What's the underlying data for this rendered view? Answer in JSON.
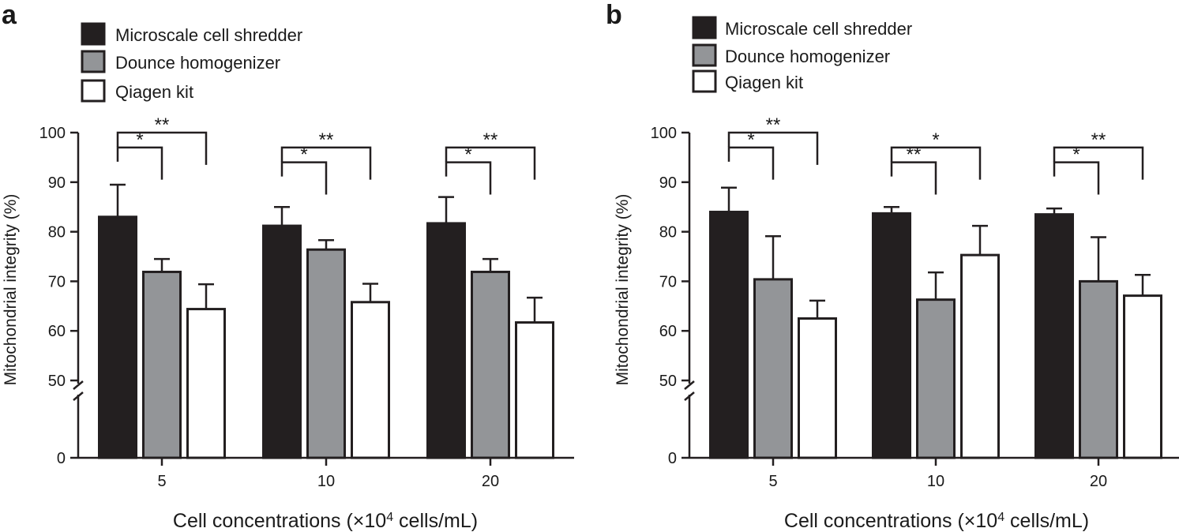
{
  "chart_data": [
    {
      "panel_label": "a",
      "type": "bar",
      "categories": [
        "5",
        "10",
        "20"
      ],
      "series": [
        {
          "name": "Microscale cell shredder",
          "color": "#231f20",
          "values": [
            83.0,
            81.2,
            81.7
          ],
          "errors": [
            6.5,
            3.8,
            5.3
          ]
        },
        {
          "name": "Dounce homogenizer",
          "color": "#939598",
          "values": [
            71.9,
            76.4,
            71.9
          ],
          "errors": [
            2.6,
            1.9,
            2.6
          ]
        },
        {
          "name": "Qiagen kit",
          "color": "#ffffff",
          "values": [
            64.4,
            65.8,
            61.7
          ],
          "errors": [
            5.0,
            3.7,
            5.0
          ]
        }
      ],
      "significance": [
        {
          "category": 0,
          "from": 0,
          "to": 1,
          "label": "*",
          "y": 97
        },
        {
          "category": 0,
          "from": 0,
          "to": 2,
          "label": "**",
          "y": 100
        },
        {
          "category": 1,
          "from": 0,
          "to": 1,
          "label": "*",
          "y": 94
        },
        {
          "category": 1,
          "from": 0,
          "to": 2,
          "label": "**",
          "y": 97
        },
        {
          "category": 2,
          "from": 0,
          "to": 1,
          "label": "*",
          "y": 94
        },
        {
          "category": 2,
          "from": 0,
          "to": 2,
          "label": "**",
          "y": 97
        }
      ],
      "xlabel_main": "Cell concentrations (×10",
      "xlabel_sup": "4",
      "xlabel_tail": " cells/mL)",
      "ylabel": "Mitochondrial integrity (%)",
      "yticks": [
        "0",
        "50",
        "60",
        "70",
        "80",
        "90",
        "100"
      ],
      "ylim_upper": [
        50,
        100
      ],
      "ylim_lower": [
        0,
        50
      ],
      "axis_break": true
    },
    {
      "panel_label": "b",
      "type": "bar",
      "categories": [
        "5",
        "10",
        "20"
      ],
      "series": [
        {
          "name": "Microscale cell shredder",
          "color": "#231f20",
          "values": [
            84.0,
            83.7,
            83.5
          ],
          "errors": [
            4.9,
            1.3,
            1.2
          ]
        },
        {
          "name": "Dounce homogenizer",
          "color": "#939598",
          "values": [
            70.4,
            66.3,
            70.0
          ],
          "errors": [
            8.7,
            5.5,
            8.9
          ]
        },
        {
          "name": "Qiagen kit",
          "color": "#ffffff",
          "values": [
            62.5,
            75.3,
            67.1
          ],
          "errors": [
            3.6,
            5.9,
            4.2
          ]
        }
      ],
      "significance": [
        {
          "category": 0,
          "from": 0,
          "to": 1,
          "label": "*",
          "y": 97
        },
        {
          "category": 0,
          "from": 0,
          "to": 2,
          "label": "**",
          "y": 100
        },
        {
          "category": 1,
          "from": 0,
          "to": 1,
          "label": "**",
          "y": 94
        },
        {
          "category": 1,
          "from": 0,
          "to": 2,
          "label": "*",
          "y": 97
        },
        {
          "category": 2,
          "from": 0,
          "to": 1,
          "label": "*",
          "y": 94
        },
        {
          "category": 2,
          "from": 0,
          "to": 2,
          "label": "**",
          "y": 97
        }
      ],
      "xlabel_main": "Cell concentrations (×10",
      "xlabel_sup": "4",
      "xlabel_tail": " cells/mL)",
      "ylabel": "Mitochondrial integrity (%)",
      "yticks": [
        "0",
        "50",
        "60",
        "70",
        "80",
        "90",
        "100"
      ],
      "ylim_upper": [
        50,
        100
      ],
      "ylim_lower": [
        0,
        50
      ],
      "axis_break": true
    }
  ]
}
